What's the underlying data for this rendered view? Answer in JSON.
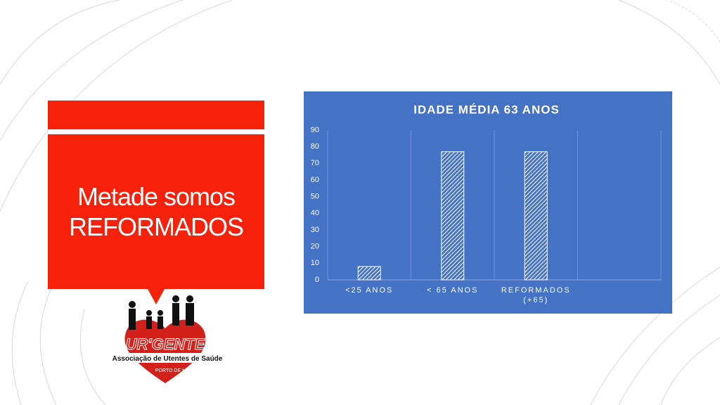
{
  "slide": {
    "heading": "Metade somos REFORMADOS"
  },
  "logo": {
    "name": "UR'GENTE",
    "subtitle": "Associação de Utentes de Saúde",
    "place": "PORTO DE MOS"
  },
  "chart_data": {
    "type": "bar",
    "title": "IDADE MÉDIA 63 ANOS",
    "categories": [
      "<25 ANOS",
      "< 65 ANOS",
      "REFORMADOS (+65)",
      null
    ],
    "values": [
      8,
      77,
      77,
      null
    ],
    "color": "#ffffff",
    "ylim": [
      0,
      90
    ],
    "yticks": [
      0,
      10,
      20,
      30,
      40,
      50,
      60,
      70,
      80,
      90
    ],
    "grid": false
  }
}
